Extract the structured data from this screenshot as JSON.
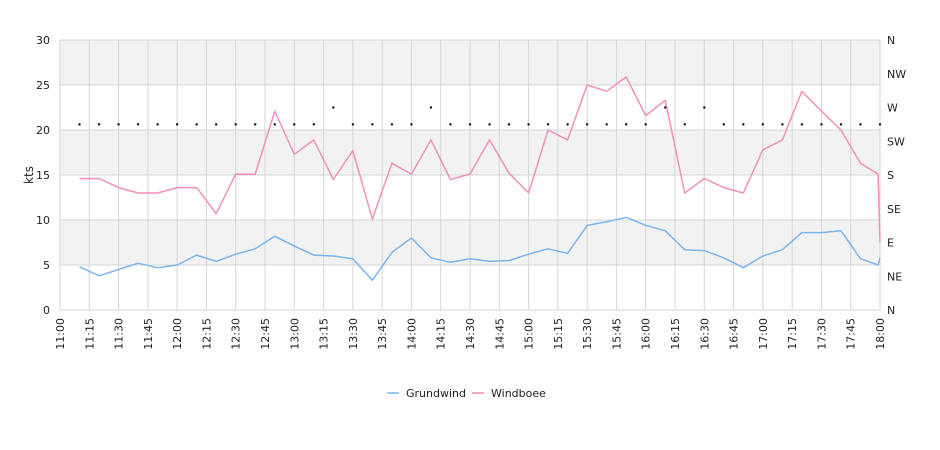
{
  "chart_data": {
    "type": "line",
    "ylabel": "kts",
    "ylim": [
      0,
      30
    ],
    "yticks": [
      0,
      5,
      10,
      15,
      20,
      25,
      30
    ],
    "direction_ticks": [
      "N",
      "NE",
      "E",
      "SE",
      "S",
      "SW",
      "W",
      "NW",
      "N"
    ],
    "x_ticks": [
      "11:00",
      "11:15",
      "11:30",
      "11:45",
      "12:00",
      "12:15",
      "12:30",
      "12:45",
      "13:00",
      "13:15",
      "13:30",
      "13:45",
      "14:00",
      "14:15",
      "14:30",
      "14:45",
      "15:00",
      "15:15",
      "15:30",
      "15:45",
      "16:00",
      "16:15",
      "16:30",
      "16:45",
      "17:00",
      "17:15",
      "17:30",
      "17:45",
      "18:00"
    ],
    "x_range_minutes": [
      0,
      420
    ],
    "grid": true,
    "legend_position": "bottom-center",
    "x": [
      10,
      20,
      30,
      40,
      50,
      60,
      70,
      80,
      90,
      100,
      110,
      120,
      130,
      140,
      150,
      160,
      170,
      180,
      190,
      200,
      210,
      220,
      230,
      240,
      250,
      260,
      270,
      280,
      290,
      300,
      310,
      320,
      330,
      340,
      350,
      360,
      370,
      380,
      390,
      400,
      410,
      419,
      420
    ],
    "series": [
      {
        "name": "Grundwind",
        "color": "#7cb5ec",
        "values": [
          4.8,
          3.8,
          4.5,
          5.2,
          4.7,
          5.0,
          6.1,
          5.4,
          6.2,
          6.8,
          8.2,
          7.1,
          6.1,
          6.0,
          5.7,
          3.3,
          6.4,
          8.0,
          5.8,
          5.3,
          5.7,
          5.4,
          5.5,
          6.2,
          6.8,
          6.3,
          9.4,
          9.8,
          10.3,
          9.4,
          8.8,
          6.7,
          6.6,
          5.8,
          4.7,
          6.0,
          6.7,
          8.6,
          8.6,
          8.8,
          5.7,
          5.0,
          5.8
        ]
      },
      {
        "name": "Windboee",
        "color": "#f190bb",
        "values": [
          14.6,
          14.6,
          13.6,
          13.0,
          13.0,
          13.6,
          13.6,
          10.7,
          15.1,
          15.1,
          22.1,
          17.3,
          18.9,
          14.5,
          17.7,
          10.1,
          16.3,
          15.1,
          18.9,
          14.5,
          15.1,
          18.9,
          15.2,
          13.0,
          20.0,
          18.9,
          25.0,
          24.3,
          25.9,
          21.6,
          23.3,
          13.0,
          14.6,
          13.6,
          13.0,
          17.8,
          18.9,
          24.3,
          22.1,
          20.0,
          16.3,
          15.1,
          7.5
        ]
      },
      {
        "name": "",
        "type": "scatter",
        "color": "#111111",
        "axis": "direction",
        "x": [
          10,
          20,
          30,
          40,
          50,
          60,
          70,
          80,
          90,
          100,
          110,
          120,
          130,
          140,
          150,
          160,
          170,
          180,
          190,
          200,
          210,
          220,
          230,
          240,
          250,
          260,
          270,
          280,
          290,
          300,
          310,
          320,
          330,
          340,
          350,
          360,
          370,
          380,
          390,
          400,
          410,
          420
        ],
        "values": [
          5.5,
          5.5,
          5.5,
          5.5,
          5.5,
          5.5,
          5.5,
          5.5,
          5.5,
          5.5,
          5.5,
          5.5,
          5.5,
          6,
          5.5,
          5.5,
          5.5,
          5.5,
          6,
          5.5,
          5.5,
          5.5,
          5.5,
          5.5,
          5.5,
          5.5,
          5.5,
          5.5,
          5.5,
          5.5,
          6,
          5.5,
          6,
          5.5,
          5.5,
          5.5,
          5.5,
          5.5,
          5.5,
          5.5,
          5.5,
          5.5
        ]
      }
    ]
  }
}
